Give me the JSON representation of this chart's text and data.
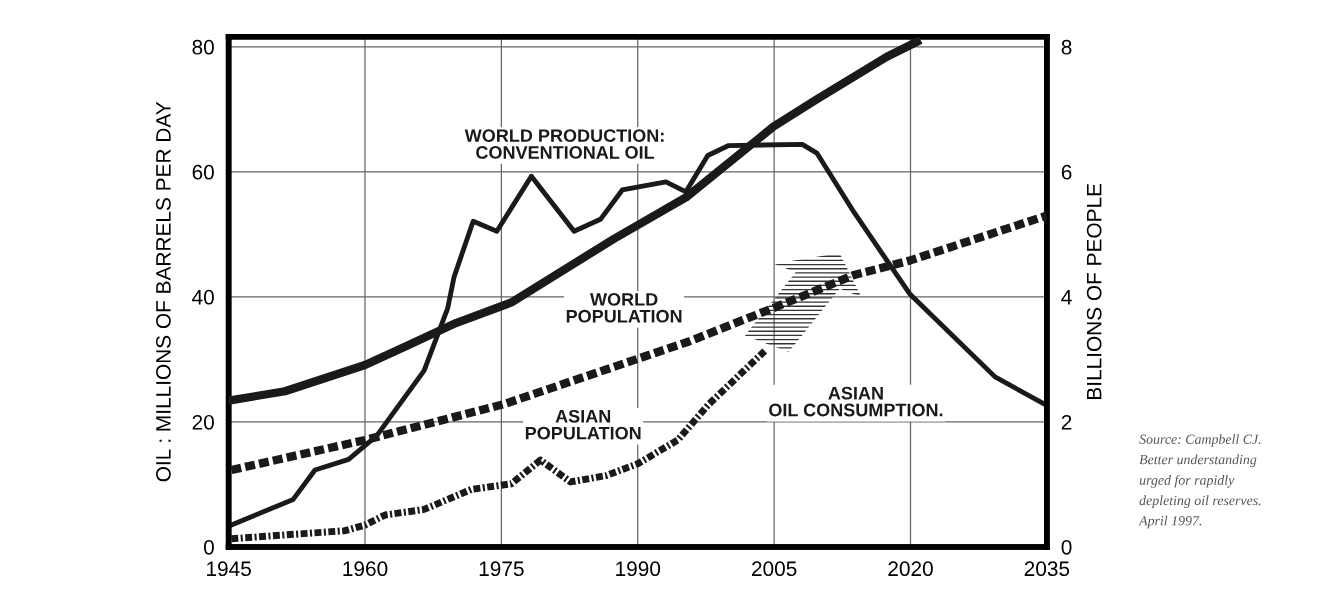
{
  "chart_data": {
    "type": "line",
    "xlabel": null,
    "ylabel": "OIL : MILLIONS OF BARRELS PER DAY",
    "y2label": "BILLIONS OF PEOPLE",
    "xlim": [
      1945,
      2035
    ],
    "xticks": [
      1945,
      1960,
      1975,
      1990,
      2005,
      2020,
      2035
    ],
    "ylim": [
      0,
      81.6
    ],
    "yticks": [
      0,
      20,
      40,
      60,
      80
    ],
    "y2lim": [
      0,
      8.16
    ],
    "y2ticks": [
      0,
      2,
      4,
      6,
      8
    ],
    "grid": true,
    "legend": false,
    "series": [
      {
        "name": "WORLD PRODUCTION: CONVENTIONAL OIL",
        "color": "#1a1a1a",
        "line_style": "solid",
        "x": [
          1945.3,
          1952.1,
          1954.5,
          1958.2,
          1961.3,
          1966.5,
          1969.1,
          1969.8,
          1971.9,
          1974.5,
          1978.3,
          1983,
          1985.9,
          1988.3,
          1993.1,
          1995.3,
          1997.7,
          2000,
          2008.1,
          2009.7,
          2013.8,
          2019.9,
          2029.3,
          2034.9
        ],
        "values": [
          3.5,
          7.6,
          12.3,
          14,
          17.8,
          28.2,
          38.2,
          43.2,
          52.1,
          50.5,
          59.3,
          50.5,
          52.4,
          57.1,
          58.4,
          56.8,
          62.6,
          64.2,
          64.4,
          63,
          53.5,
          40.5,
          27.2,
          22.7
        ]
      },
      {
        "name": "WORLD POPULATION",
        "color": "#1a1a1a",
        "line_style": "solid",
        "axis": "y2",
        "x": [
          1945,
          1951.2,
          1960,
          1964.8,
          1970,
          1976.1,
          1987.4,
          1995.3,
          2004.9,
          2009.7,
          2017.4,
          2020.7
        ],
        "values": [
          2.34,
          2.49,
          2.91,
          3.23,
          3.58,
          3.91,
          4.93,
          5.59,
          6.72,
          7.16,
          7.84,
          8.08
        ]
      },
      {
        "name": "ASIAN POPULATION",
        "color": "#1a1a1a",
        "line_style": "dashed",
        "axis": "y2",
        "x": [
          1945.3,
          1960,
          1975.2,
          1995.7,
          2004.9,
          2013.8,
          2019.9,
          2035
        ],
        "values": [
          1.23,
          1.71,
          2.28,
          3.29,
          3.82,
          4.35,
          4.58,
          5.3
        ]
      },
      {
        "name": "ASIAN OIL CONSUMPTION.",
        "color": "#1a1a1a",
        "line_style": "dotted",
        "x": [
          1945.3,
          1957.8,
          1960,
          1962.2,
          1966.5,
          1971.7,
          1976.1,
          1979.3,
          1982.6,
          1986.5,
          1990,
          1994.4,
          1997.8,
          2004
        ],
        "values": [
          1.3,
          2.6,
          3.5,
          5.1,
          6,
          9.2,
          10.1,
          13.9,
          10.4,
          11.4,
          13.3,
          17.1,
          22.8,
          31.4
        ]
      }
    ],
    "annotations": [
      "Source: Campbell CJ.\nBetter understanding\nurged for rapidly\ndepleting oil reserves.\nApril 1997."
    ]
  }
}
